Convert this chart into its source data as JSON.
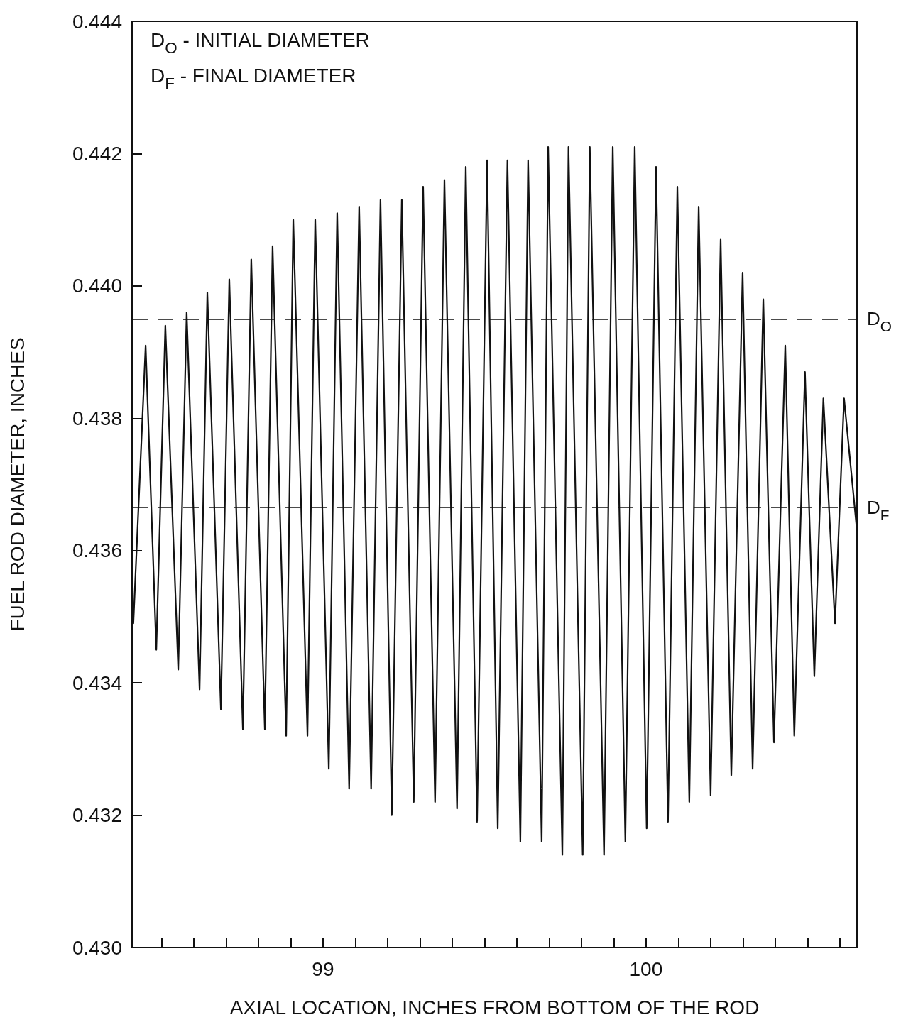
{
  "chart_data": {
    "type": "line",
    "xlabel": "AXIAL LOCATION, INCHES FROM BOTTOM OF THE ROD",
    "ylabel": "FUEL ROD DIAMETER, INCHES",
    "annotations": [
      "D$_{O}$ - INITIAL DIAMETER",
      "D$_{F}$ - FINAL DIAMETER"
    ],
    "series": [
      {
        "color": "#111111",
        "x": [
          98.409,
          98.413,
          98.451,
          98.484,
          98.512,
          98.552,
          98.578,
          98.618,
          98.642,
          98.684,
          98.71,
          98.752,
          98.778,
          98.82,
          98.844,
          98.886,
          98.908,
          98.952,
          98.976,
          99.018,
          99.044,
          99.081,
          99.112,
          99.149,
          99.178,
          99.213,
          99.244,
          99.281,
          99.31,
          99.347,
          99.376,
          99.415,
          99.442,
          99.477,
          99.508,
          99.541,
          99.571,
          99.611,
          99.635,
          99.677,
          99.697,
          99.741,
          99.76,
          99.804,
          99.826,
          99.87,
          99.897,
          99.936,
          99.965,
          100.002,
          100.031,
          100.068,
          100.097,
          100.134,
          100.163,
          100.2,
          100.231,
          100.264,
          100.299,
          100.33,
          100.363,
          100.396,
          100.431,
          100.459,
          100.492,
          100.521,
          100.549,
          100.585,
          100.613,
          100.653
        ],
        "values": [
          0.4355,
          0.4349,
          0.4391,
          0.4345,
          0.4394,
          0.4342,
          0.4396,
          0.4339,
          0.4399,
          0.4336,
          0.4401,
          0.4333,
          0.4404,
          0.4333,
          0.4406,
          0.4332,
          0.441,
          0.4332,
          0.441,
          0.4327,
          0.4411,
          0.4324,
          0.4412,
          0.4324,
          0.4413,
          0.432,
          0.4413,
          0.4322,
          0.4415,
          0.4322,
          0.4416,
          0.4321,
          0.4418,
          0.4319,
          0.4419,
          0.4318,
          0.4419,
          0.4316,
          0.4419,
          0.4316,
          0.4421,
          0.4314,
          0.4421,
          0.4314,
          0.4421,
          0.4314,
          0.4421,
          0.4316,
          0.4421,
          0.4318,
          0.4418,
          0.4319,
          0.4415,
          0.4322,
          0.4412,
          0.4323,
          0.4407,
          0.4326,
          0.4402,
          0.4327,
          0.4398,
          0.4331,
          0.4391,
          0.4332,
          0.4387,
          0.4341,
          0.4383,
          0.4349,
          0.4383,
          0.4363
        ]
      }
    ],
    "xlim": [
      98.409,
      100.653
    ],
    "xticks": [
      {
        "value": 98.5,
        "label": null
      },
      {
        "value": 98.6,
        "label": null
      },
      {
        "value": 98.7,
        "label": null
      },
      {
        "value": 98.8,
        "label": null
      },
      {
        "value": 98.9,
        "label": null
      },
      99,
      {
        "value": 99.1,
        "label": null
      },
      {
        "value": 99.2,
        "label": null
      },
      {
        "value": 99.3,
        "label": null
      },
      {
        "value": 99.4,
        "label": null
      },
      {
        "value": 99.5,
        "label": null
      },
      {
        "value": 99.6,
        "label": null
      },
      {
        "value": 99.7,
        "label": null
      },
      {
        "value": 99.8,
        "label": null
      },
      {
        "value": 99.9,
        "label": null
      },
      100,
      {
        "value": 100.1,
        "label": null
      },
      {
        "value": 100.2,
        "label": null
      },
      {
        "value": 100.3,
        "label": null
      },
      {
        "value": 100.4,
        "label": null
      },
      {
        "value": 100.5,
        "label": null
      },
      {
        "value": 100.6,
        "label": null
      }
    ],
    "ylim": [
      0.43,
      0.444
    ],
    "yticks": [
      {
        "value": 0.43,
        "label": "0.430"
      },
      {
        "value": 0.432,
        "label": "0.432"
      },
      {
        "value": 0.434,
        "label": "0.434"
      },
      {
        "value": 0.436,
        "label": "0.436"
      },
      {
        "value": 0.438,
        "label": "0.438"
      },
      {
        "value": 0.44,
        "label": "0.440"
      },
      {
        "value": 0.442,
        "label": "0.442"
      },
      {
        "value": 0.444,
        "label": "0.444"
      }
    ],
    "ref_lines": [
      {
        "axis": "y",
        "value": 0.4395,
        "label": "D$_{O}$",
        "line_style": "dashed"
      },
      {
        "axis": "y",
        "value": 0.43665,
        "label": "D$_{F}$",
        "line_style": "dashed"
      }
    ],
    "grid": false,
    "marker": "none",
    "line_style": "solid"
  }
}
